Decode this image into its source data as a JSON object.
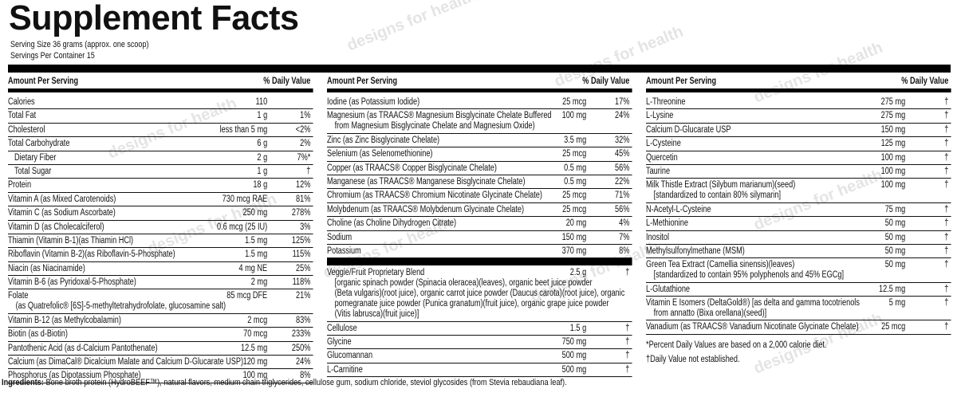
{
  "watermark": "designs for health",
  "title": "Supplement Facts",
  "serving_size": "Serving Size 36 grams (approx. one scoop)",
  "servings_per_container": "Servings Per Container 15",
  "header": {
    "amount": "Amount Per Serving",
    "dv": "% Daily Value"
  },
  "columns": [
    {
      "groups": [
        [
          {
            "name": "Calories",
            "amount": "110"
          },
          {
            "name": "Total Fat",
            "amount": "1 g",
            "dv": "1%"
          },
          {
            "name": "Cholesterol",
            "amount": "less than 5 mg",
            "dv": "<2%"
          },
          {
            "name": "Total Carbohydrate",
            "amount": "6 g",
            "dv": "2%"
          },
          {
            "name": "Dietary Fiber",
            "amount": "2 g",
            "dv": "7%*",
            "indent": true
          },
          {
            "name": "Total Sugar",
            "amount": "1 g",
            "dv": "†",
            "indent": true
          },
          {
            "name": "Protein",
            "amount": "18 g",
            "dv": "12%"
          },
          {
            "name": "Vitamin A (as Mixed Carotenoids)",
            "amount": "730 mcg RAE",
            "dv": "81%"
          },
          {
            "name": "Vitamin C (as Sodium Ascorbate)",
            "amount": "250 mg",
            "dv": "278%"
          },
          {
            "name": "Vitamin D (as Cholecalciferol)",
            "amount": "0.6 mcg (25 IU)",
            "dv": "3%"
          },
          {
            "name": "Thiamin (Vitamin B-1)(as Thiamin HCl)",
            "amount": "1.5 mg",
            "dv": "125%"
          },
          {
            "name": "Riboflavin (Vitamin B-2)(as Riboflavin-5-Phosphate)",
            "amount": "1.5 mg",
            "dv": "115%"
          },
          {
            "name": "Niacin (as Niacinamide)",
            "amount": "4 mg NE",
            "dv": "25%"
          },
          {
            "name": "Vitamin B-6 (as Pyridoxal-5-Phosphate)",
            "amount": "2 mg",
            "dv": "118%"
          },
          {
            "name": "Folate",
            "amount": "85 mcg DFE",
            "dv": "21%",
            "detail": [
              "(as Quatrefolic® [6S]-5-methyltetrahydrofolate, glucosamine salt)"
            ]
          },
          {
            "name": "Vitamin B-12 (as Methylcobalamin)",
            "amount": "2 mcg",
            "dv": "83%"
          },
          {
            "name": "Biotin (as d-Biotin)",
            "amount": "70 mcg",
            "dv": "233%"
          },
          {
            "name": "Pantothenic Acid (as d-Calcium Pantothenate)",
            "amount": "12.5 mg",
            "dv": "250%"
          },
          {
            "name": "Calcium (as DimaCal® Dicalcium Malate and Calcium D-Glucarate USP)",
            "amount": "120 mg",
            "dv": "24%"
          },
          {
            "name": "Phosphorus (as Dipotassium Phosphate)",
            "amount": "100 mg",
            "dv": "8%"
          }
        ]
      ]
    },
    {
      "groups": [
        [
          {
            "name": "Iodine (as Potassium Iodide)",
            "amount": "25 mcg",
            "dv": "17%"
          },
          {
            "name": "Magnesium (as TRAACS® Magnesium Bisglycinate Chelate Buffered",
            "amount": "100 mg",
            "dv": "24%",
            "detail": [
              "from Magnesium Bisglycinate Chelate and Magnesium Oxide)"
            ]
          },
          {
            "name": "Zinc (as Zinc Bisglycinate Chelate)",
            "amount": "3.5 mg",
            "dv": "32%"
          },
          {
            "name": "Selenium (as Selenomethionine)",
            "amount": "25 mcg",
            "dv": "45%"
          },
          {
            "name": "Copper (as TRAACS® Copper Bisglycinate Chelate)",
            "amount": "0.5 mg",
            "dv": "56%"
          },
          {
            "name": "Manganese (as TRAACS® Manganese Bisglycinate Chelate)",
            "amount": "0.5 mg",
            "dv": "22%"
          },
          {
            "name": "Chromium (as TRAACS® Chromium Nicotinate Glycinate Chelate)",
            "amount": "25 mcg",
            "dv": "71%"
          },
          {
            "name": "Molybdenum (as TRAACS® Molybdenum Glycinate Chelate)",
            "amount": "25 mcg",
            "dv": "56%"
          },
          {
            "name": "Choline (as Choline Dihydrogen Citrate)",
            "amount": "20 mg",
            "dv": "4%"
          },
          {
            "name": "Sodium",
            "amount": "150 mg",
            "dv": "7%"
          },
          {
            "name": "Potassium",
            "amount": "370 mg",
            "dv": "8%"
          }
        ],
        [
          {
            "name": "Veggie/Fruit Proprietary Blend",
            "amount": "2.5 g",
            "dv": "†",
            "detail": [
              "[organic spinach powder (Spinacia oleracea)(leaves), organic beet juice powder",
              "(Beta vulgaris)(root juice), organic carrot juice powder (Daucus carota)(root juice), organic",
              "pomegranate juice powder (Punica granatum)(fruit juice), organic grape juice powder",
              "(Vitis labrusca)(fruit juice)]"
            ]
          },
          {
            "name": "Cellulose",
            "amount": "1.5 g",
            "dv": "†"
          },
          {
            "name": "Glycine",
            "amount": "750 mg",
            "dv": "†"
          },
          {
            "name": "Glucomannan",
            "amount": "500 mg",
            "dv": "†"
          },
          {
            "name": "L-Carnitine",
            "amount": "500 mg",
            "dv": "†"
          }
        ]
      ]
    },
    {
      "groups": [
        [
          {
            "name": "L-Threonine",
            "amount": "275 mg",
            "dv": "†"
          },
          {
            "name": "L-Lysine",
            "amount": "275 mg",
            "dv": "†"
          },
          {
            "name": "Calcium D-Glucarate USP",
            "amount": "150 mg",
            "dv": "†"
          },
          {
            "name": "L-Cysteine",
            "amount": "125 mg",
            "dv": "†"
          },
          {
            "name": "Quercetin",
            "amount": "100 mg",
            "dv": "†"
          },
          {
            "name": "Taurine",
            "amount": "100 mg",
            "dv": "†"
          },
          {
            "name": "Milk Thistle Extract (Silybum marianum)(seed)",
            "amount": "100 mg",
            "dv": "†",
            "detail": [
              "[standardized to contain 80% silymarin]"
            ]
          },
          {
            "name": "N-Acetyl-L-Cysteine",
            "amount": "75 mg",
            "dv": "†"
          },
          {
            "name": "L-Methionine",
            "amount": "50 mg",
            "dv": "†"
          },
          {
            "name": "Inositol",
            "amount": "50 mg",
            "dv": "†"
          },
          {
            "name": "Methylsulfonylmethane (MSM)",
            "amount": "50 mg",
            "dv": "†"
          },
          {
            "name": "Green Tea Extract (Camellia sinensis)(leaves)",
            "amount": "50 mg",
            "dv": "†",
            "detail": [
              "[standardized to contain 95% polyphenols and 45% EGCg]"
            ]
          },
          {
            "name": "L-Glutathione",
            "amount": "12.5 mg",
            "dv": "†"
          },
          {
            "name": "Vitamin E Isomers (DeltaGold®) [as delta and gamma tocotrienols",
            "amount": "5 mg",
            "dv": "†",
            "detail": [
              "from annatto (Bixa orellana)(seed)]"
            ]
          },
          {
            "name": "Vanadium (as TRAACS® Vanadium Nicotinate Glycinate Chelate)",
            "amount": "25 mcg",
            "dv": "†"
          }
        ]
      ],
      "footnotes": [
        "*Percent Daily Values are based on a 2,000 calorie diet.",
        "†Daily Value not established."
      ]
    }
  ],
  "ingredients": {
    "label": "Ingredients:",
    "text": "Bone broth protein (HydroBEEF™), natural flavors, medium chain triglycerides, cellulose gum, sodium chloride, steviol glycosides (from Stevia rebaudiana leaf)."
  }
}
